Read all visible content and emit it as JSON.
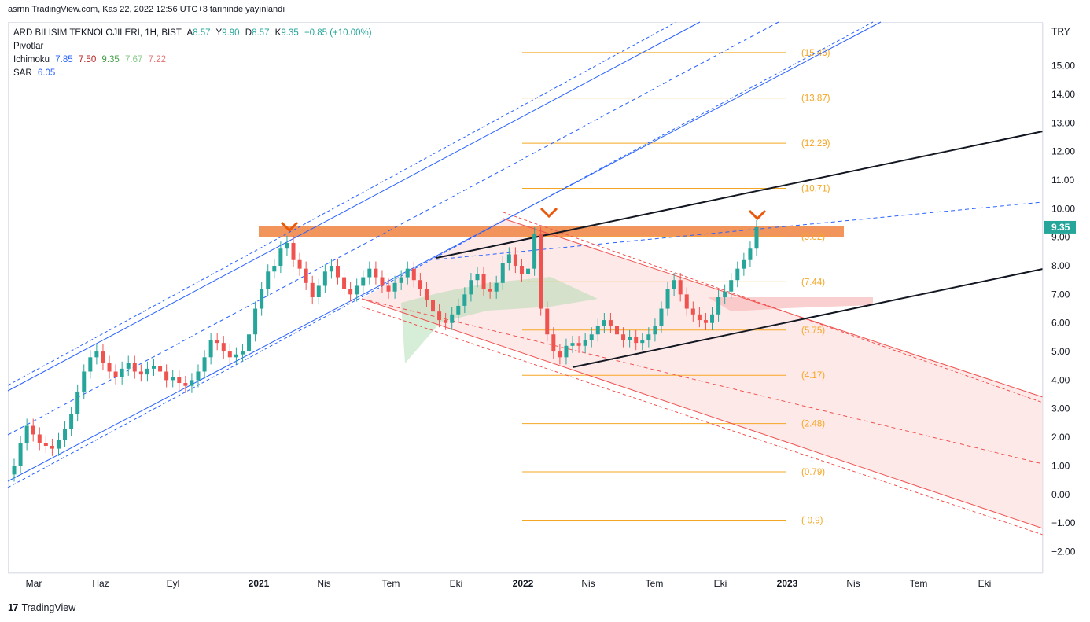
{
  "header": {
    "publisher_line": "asrnn TradingView.com, Kas 22, 2022 12:56 UTC+3 tarihinde yayınlandı"
  },
  "legend": {
    "symbol": "ARD BILISIM TEKNOLOJILERI, 1H, BIST",
    "open_label": "A",
    "open": "8.57",
    "high_label": "Y",
    "high": "9.90",
    "low_label": "D",
    "low": "8.57",
    "close_label": "K",
    "close": "9.35",
    "change": "+0.85 (+10.00%)",
    "pivots": "Pivotlar",
    "ichimoku_label": "Ichimoku",
    "ichimoku_values": [
      "7.85",
      "7.50",
      "9.35",
      "7.67",
      "7.22"
    ],
    "sar_label": "SAR",
    "sar_value": "6.05"
  },
  "footer": {
    "brand": "TradingView"
  },
  "colors": {
    "up": "#26a69a",
    "down": "#ef5350",
    "blue": "#2962ff",
    "orange": "#f57c00",
    "fib": "#f5a623",
    "black": "#131722"
  },
  "chart_data": {
    "type": "candlestick",
    "currency": "TRY",
    "last_price_label": "9.35",
    "ylim": [
      -2.4,
      16.2
    ],
    "y_ticks": [
      "15.00",
      "14.00",
      "13.00",
      "12.00",
      "11.00",
      "10.00",
      "9.00",
      "8.00",
      "7.00",
      "6.00",
      "5.00",
      "4.00",
      "3.00",
      "2.00",
      "1.00",
      "0.00",
      "−1.00",
      "−2.00"
    ],
    "x_ticks": [
      "Mar",
      "Haz",
      "Eyl",
      "2021",
      "Nis",
      "Tem",
      "Eki",
      "2022",
      "Nis",
      "Tem",
      "Eki",
      "2023",
      "Nis",
      "Tem",
      "Eki"
    ],
    "fib_levels": [
      "(15.46)",
      "(13.87)",
      "(12.29)",
      "(10.71)",
      "(9.02)",
      "(7.44)",
      "(5.75)",
      "(4.17)",
      "(2.48)",
      "(0.79)",
      "(-0.9)"
    ],
    "fib_values": [
      15.46,
      13.87,
      12.29,
      10.71,
      9.02,
      7.44,
      5.75,
      4.17,
      2.48,
      0.79,
      -0.9
    ],
    "resistance_zone": [
      9.0,
      9.4
    ],
    "closes": [
      1.0,
      1.8,
      2.4,
      2.1,
      1.8,
      1.7,
      1.6,
      1.9,
      2.3,
      2.8,
      3.6,
      4.3,
      4.8,
      5.0,
      4.6,
      4.3,
      4.1,
      4.4,
      4.6,
      4.3,
      4.2,
      4.4,
      4.5,
      4.3,
      4.0,
      4.1,
      3.9,
      3.8,
      4.0,
      4.3,
      4.8,
      5.4,
      5.3,
      5.0,
      4.8,
      4.9,
      5.0,
      5.6,
      6.5,
      7.2,
      7.8,
      8.0,
      8.6,
      8.8,
      8.2,
      7.9,
      7.4,
      6.9,
      7.3,
      7.8,
      8.0,
      7.6,
      7.2,
      7.0,
      7.3,
      7.6,
      7.9,
      7.6,
      7.3,
      7.1,
      7.4,
      7.6,
      7.9,
      7.5,
      7.2,
      6.8,
      6.4,
      6.1,
      6.0,
      6.3,
      6.6,
      7.0,
      7.5,
      7.7,
      7.2,
      7.1,
      7.4,
      8.1,
      8.4,
      8.0,
      7.7,
      7.9,
      9.1,
      6.5,
      5.6,
      5.0,
      4.8,
      5.2,
      5.3,
      5.2,
      5.4,
      5.6,
      5.9,
      6.1,
      5.9,
      5.6,
      5.4,
      5.5,
      5.3,
      5.4,
      5.6,
      5.9,
      6.5,
      7.2,
      7.5,
      7.0,
      6.5,
      6.3,
      6.1,
      6.0,
      6.3,
      6.9,
      7.1,
      7.5,
      7.9,
      8.2,
      8.6,
      9.35
    ]
  }
}
